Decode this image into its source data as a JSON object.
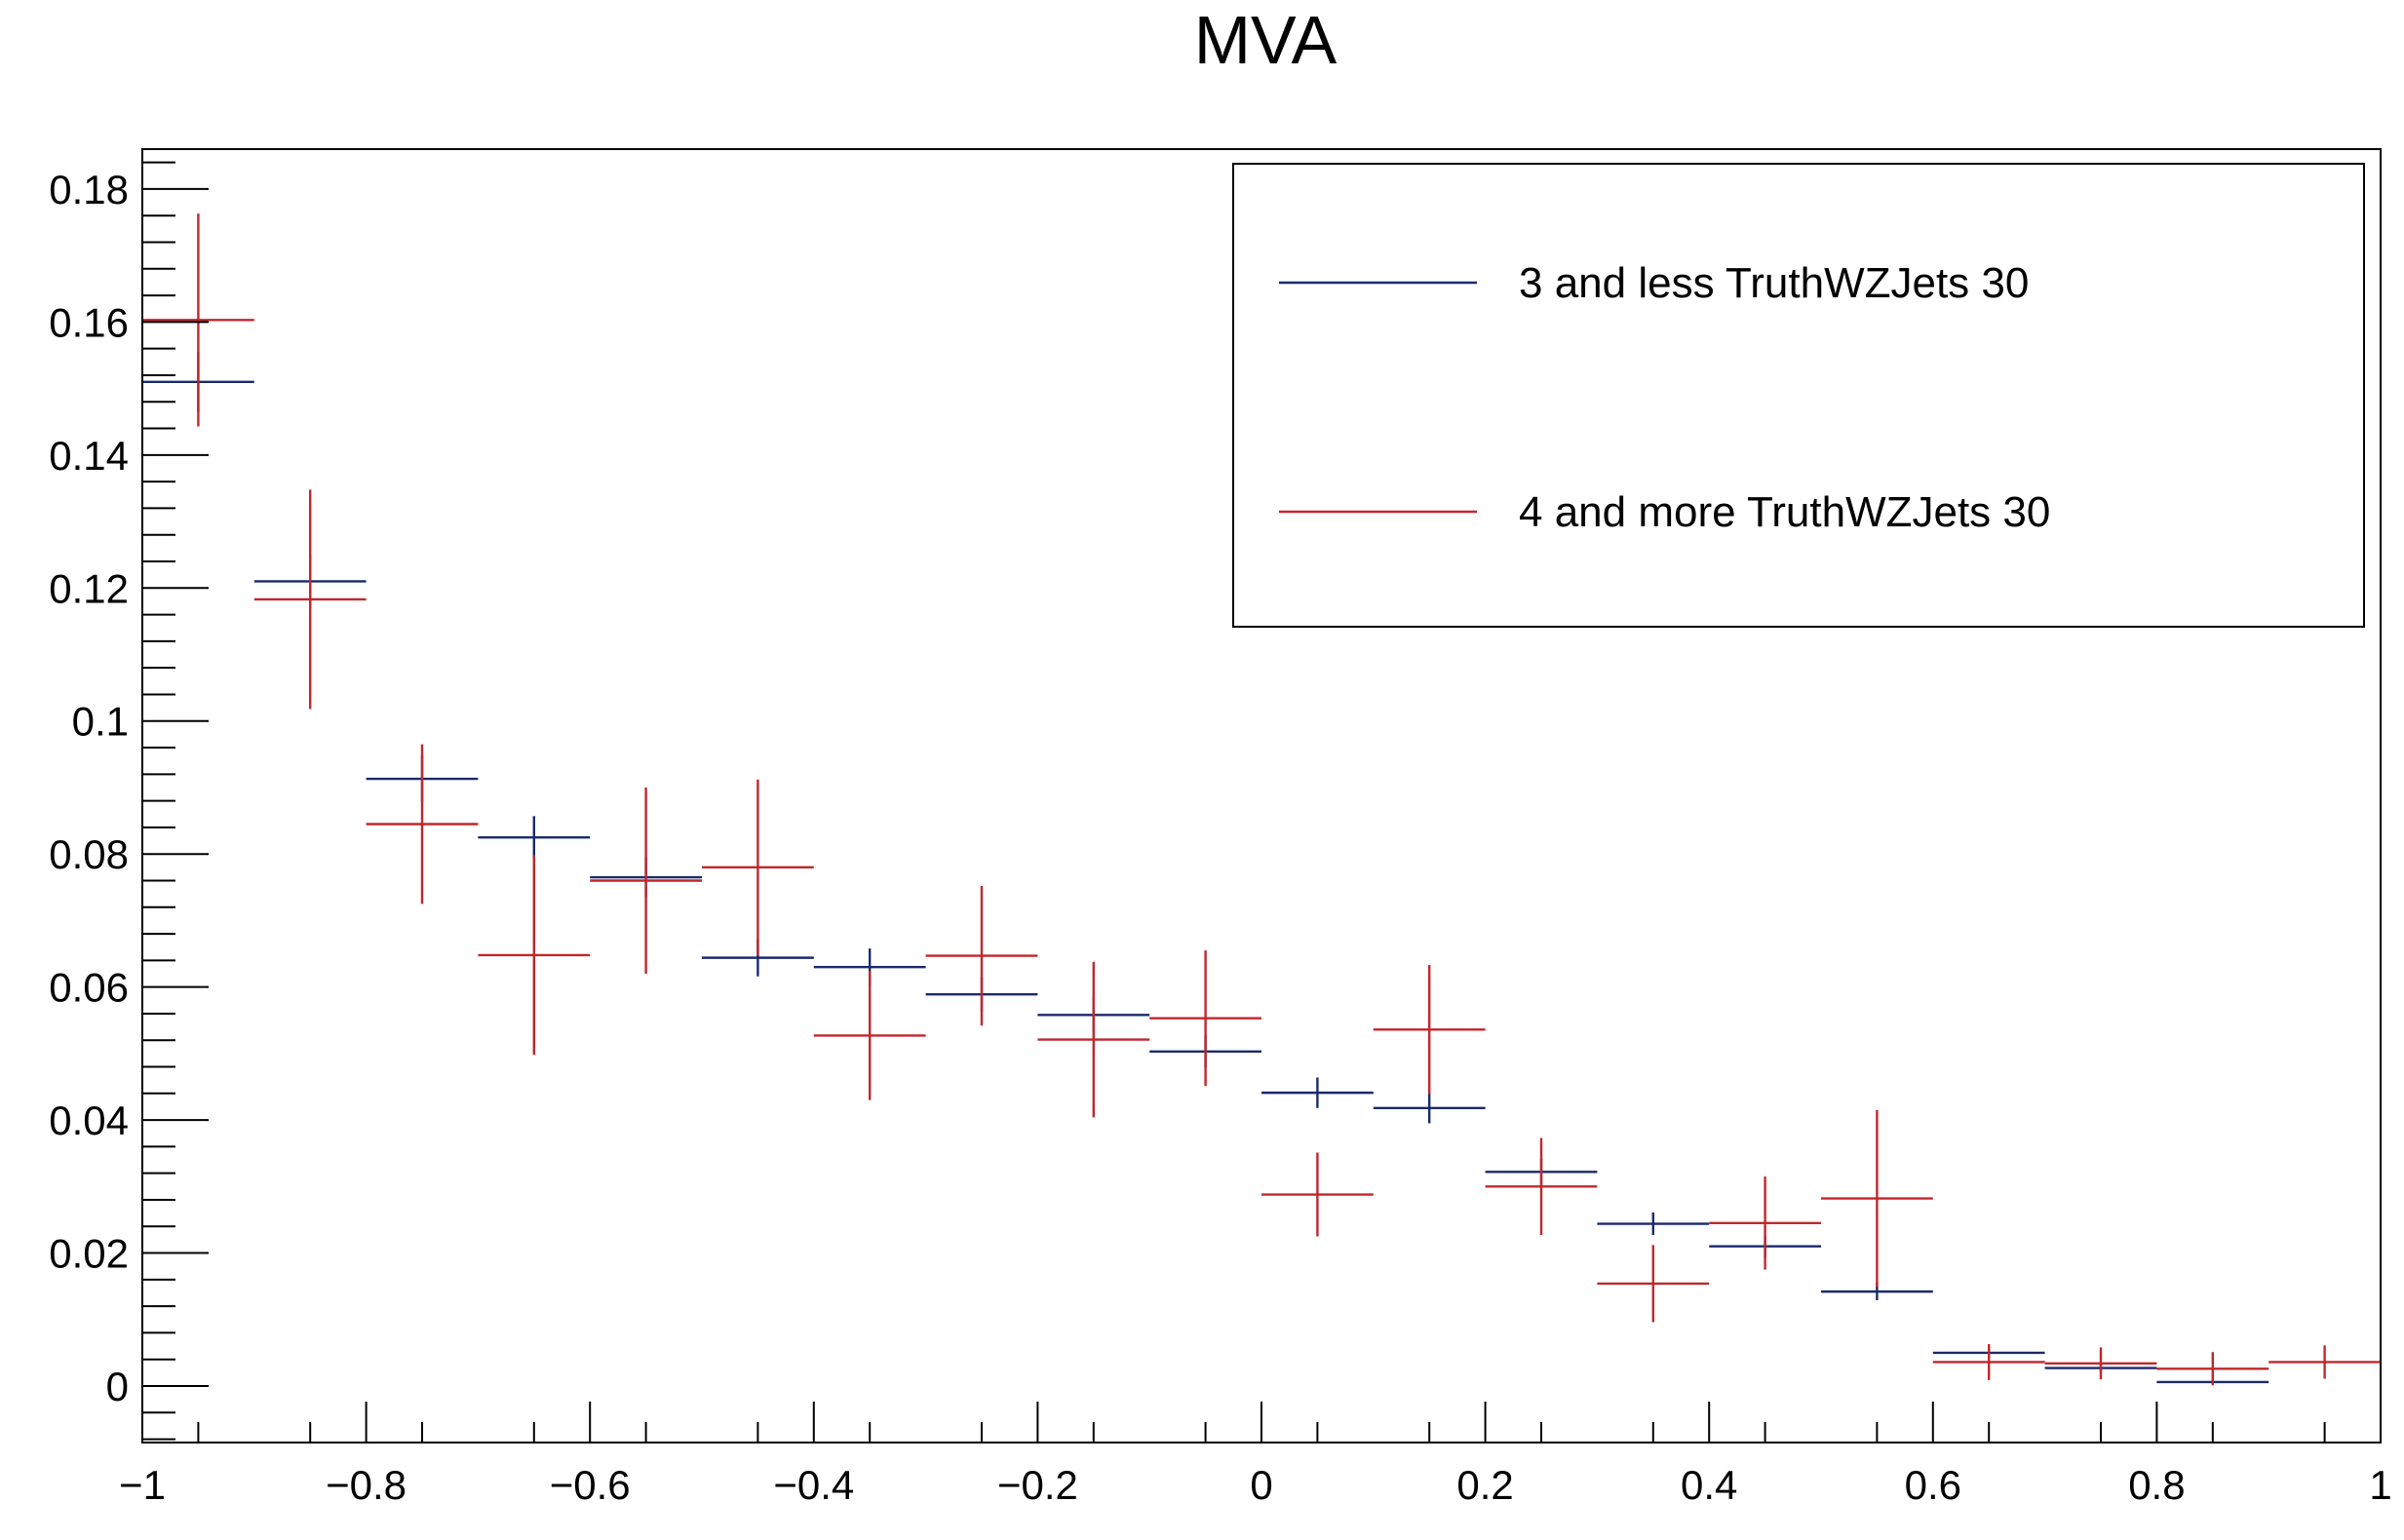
{
  "chart_data": {
    "type": "scatter",
    "title": "MVA",
    "xlabel": "",
    "ylabel": "",
    "xlim": [
      -1,
      1
    ],
    "ylim": [
      -0.0085,
      0.186
    ],
    "x_major_ticks": [
      -1,
      -0.8,
      -0.6,
      -0.4,
      -0.2,
      0,
      0.2,
      0.4,
      0.6,
      0.8,
      1
    ],
    "x_tick_labels": [
      "−1",
      "−0.8",
      "−0.6",
      "−0.4",
      "−0.2",
      "0",
      "0.2",
      "0.4",
      "0.6",
      "0.8",
      "1"
    ],
    "y_major_ticks": [
      0,
      0.02,
      0.04,
      0.06,
      0.08,
      0.1,
      0.12,
      0.14,
      0.16,
      0.18
    ],
    "y_tick_labels": [
      "0",
      "0.02",
      "0.04",
      "0.06",
      "0.08",
      "0.1",
      "0.12",
      "0.14",
      "0.16",
      "0.18"
    ],
    "grid": false,
    "legend_position": "top-right",
    "bin_edges": [
      -1,
      -0.9,
      -0.8,
      -0.7,
      -0.6,
      -0.5,
      -0.4,
      -0.3,
      -0.2,
      -0.1,
      0,
      0.1,
      0.2,
      0.3,
      0.4,
      0.5,
      0.6,
      0.7,
      0.8,
      0.9,
      1
    ],
    "x": [
      -0.95,
      -0.85,
      -0.75,
      -0.65,
      -0.55,
      -0.45,
      -0.35,
      -0.25,
      -0.15,
      -0.05,
      0.05,
      0.15,
      0.25,
      0.35,
      0.45,
      0.55,
      0.65,
      0.75,
      0.85,
      0.95
    ],
    "series": [
      {
        "name": "3 and less TruthWZJets 30",
        "color": "#1a2a6c",
        "values": [
          0.151,
          0.121,
          0.0913,
          0.0825,
          0.0765,
          0.0644,
          0.063,
          0.0589,
          0.0558,
          0.0503,
          0.0441,
          0.0418,
          0.0322,
          0.0244,
          0.021,
          0.0142,
          0.005,
          0.0027,
          0.0006,
          null
        ],
        "errors": [
          0.0045,
          0.004,
          0.0035,
          0.0032,
          0.003,
          0.0028,
          0.0028,
          0.0026,
          0.0026,
          0.0024,
          0.0023,
          0.0023,
          0.002,
          0.0017,
          0.0016,
          0.0013,
          0.0008,
          0.0006,
          0.0003,
          null
        ]
      },
      {
        "name": "4 and more TruthWZJets 30",
        "color": "#c1272d",
        "values": [
          0.1603,
          0.1183,
          0.0845,
          0.0648,
          0.076,
          0.078,
          0.0527,
          0.0647,
          0.0521,
          0.0553,
          0.0288,
          0.0536,
          0.03,
          0.0154,
          0.0245,
          0.0282,
          0.0036,
          0.0034,
          0.0026,
          0.0036
        ],
        "errors": [
          0.016,
          0.0165,
          0.012,
          0.015,
          0.014,
          0.0132,
          0.0097,
          0.0105,
          0.0117,
          0.0102,
          0.0063,
          0.0097,
          0.0073,
          0.0058,
          0.007,
          0.0133,
          0.0027,
          0.0024,
          0.0025,
          0.0025
        ]
      }
    ]
  }
}
